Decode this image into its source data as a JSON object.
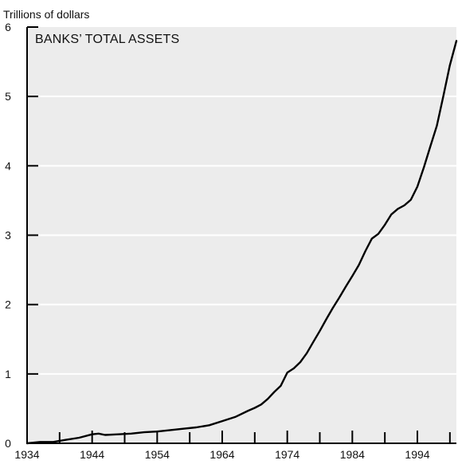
{
  "chart_data": {
    "type": "line",
    "title": "BANKS’ TOTAL ASSETS",
    "ylabel": "Trillions of dollars",
    "xlabel": "",
    "xlim": [
      1934,
      2000
    ],
    "ylim": [
      0,
      6
    ],
    "x_ticks": [
      1934,
      1944,
      1954,
      1964,
      1974,
      1984,
      1994
    ],
    "y_ticks": [
      0,
      1,
      2,
      3,
      4,
      5,
      6
    ],
    "grid": "horizontal",
    "colors": {
      "plot_background": "#ececec",
      "line": "#000000",
      "grid": "#ffffff"
    },
    "series": [
      {
        "x": [
          1934,
          1936,
          1938,
          1940,
          1942,
          1944,
          1945,
          1946,
          1948,
          1950,
          1952,
          1954,
          1956,
          1958,
          1960,
          1962,
          1964,
          1966,
          1968,
          1969,
          1970,
          1971,
          1972,
          1973,
          1974,
          1975,
          1976,
          1977,
          1978,
          1979,
          1980,
          1981,
          1982,
          1983,
          1984,
          1985,
          1986,
          1987,
          1988,
          1989,
          1990,
          1991,
          1992,
          1993,
          1994,
          1995,
          1996,
          1997,
          1998,
          1999,
          2000
        ],
        "y": [
          0.0,
          0.02,
          0.02,
          0.05,
          0.08,
          0.13,
          0.14,
          0.12,
          0.13,
          0.14,
          0.16,
          0.17,
          0.19,
          0.21,
          0.23,
          0.26,
          0.32,
          0.38,
          0.47,
          0.51,
          0.56,
          0.64,
          0.74,
          0.83,
          1.02,
          1.08,
          1.17,
          1.3,
          1.46,
          1.62,
          1.79,
          1.95,
          2.1,
          2.26,
          2.41,
          2.57,
          2.77,
          2.95,
          3.02,
          3.15,
          3.3,
          3.38,
          3.43,
          3.51,
          3.7,
          3.98,
          4.28,
          4.58,
          5.01,
          5.45,
          5.8
        ]
      }
    ]
  }
}
